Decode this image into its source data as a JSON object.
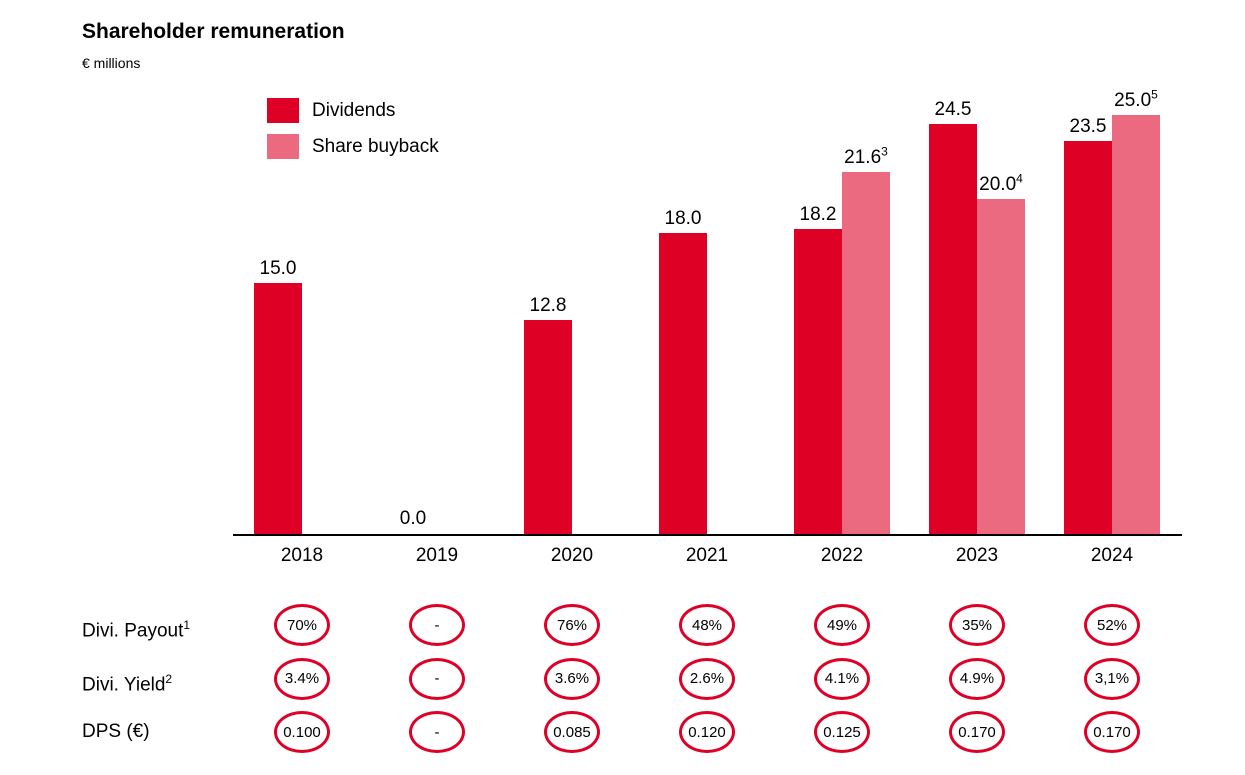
{
  "header": {
    "title": "Shareholder remuneration",
    "units": "€ millions"
  },
  "legend": [
    {
      "label": "Dividends",
      "color": "#DF0026"
    },
    {
      "label": "Share buyback",
      "color": "#EC6A80"
    }
  ],
  "colors": {
    "dividends": "#DF0026",
    "buyback": "#EC6A80",
    "oval_border": "#DF0026",
    "axis": "#000000"
  },
  "chart_data": {
    "type": "bar",
    "title": "Shareholder remuneration",
    "units": "€ millions",
    "categories": [
      "2018",
      "2019",
      "2020",
      "2021",
      "2022",
      "2023",
      "2024"
    ],
    "series": [
      {
        "name": "Dividends",
        "color": "#DF0026",
        "values": [
          15.0,
          0.0,
          12.8,
          18.0,
          18.2,
          24.5,
          23.5
        ],
        "labels": [
          {
            "text": "15.0"
          },
          {
            "text": "0.0"
          },
          {
            "text": "12.8"
          },
          {
            "text": "18.0"
          },
          {
            "text": "18.2"
          },
          {
            "text": "24.5"
          },
          {
            "text": "23.5"
          }
        ]
      },
      {
        "name": "Share buyback",
        "color": "#EC6A80",
        "values": [
          null,
          null,
          null,
          null,
          21.6,
          20.0,
          25.0
        ],
        "labels": [
          null,
          null,
          null,
          null,
          {
            "text": "21.6",
            "sup": "3"
          },
          {
            "text": "20.0",
            "sup": "4"
          },
          {
            "text": "25.0",
            "sup": "5"
          }
        ]
      }
    ],
    "ylim": [
      0,
      27
    ],
    "grid": false,
    "legend_position": "top-left",
    "value_labels": true
  },
  "table": {
    "rows": [
      {
        "label": "Divi. Payout",
        "sup": "1",
        "values": [
          "70%",
          "-",
          "76%",
          "48%",
          "49%",
          "35%",
          "52%"
        ]
      },
      {
        "label": "Divi. Yield",
        "sup": "2",
        "values": [
          "3.4%",
          "-",
          "3.6%",
          "2.6%",
          "4.1%",
          "4.9%",
          "3,1%"
        ]
      },
      {
        "label": "DPS (€)",
        "sup": "",
        "values": [
          "0.100",
          "-",
          "0.085",
          "0.120",
          "0.125",
          "0.170",
          "0.170"
        ]
      }
    ]
  }
}
